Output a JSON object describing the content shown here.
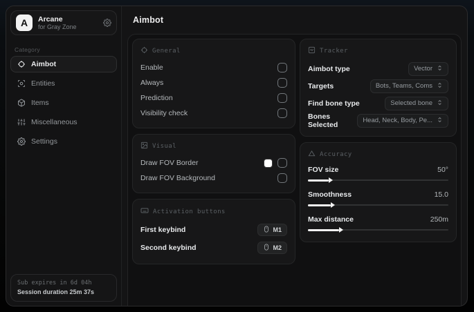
{
  "app": {
    "name": "Arcane",
    "subtitle": "for Gray Zone",
    "logo_letter": "A"
  },
  "sidebar": {
    "category_label": "Category",
    "items": [
      {
        "label": "Aimbot",
        "icon": "crosshair-icon",
        "active": true
      },
      {
        "label": "Entities",
        "icon": "entities-icon",
        "active": false
      },
      {
        "label": "Items",
        "icon": "items-icon",
        "active": false
      },
      {
        "label": "Miscellaneous",
        "icon": "sliders-icon",
        "active": false
      },
      {
        "label": "Settings",
        "icon": "gear-icon",
        "active": false
      }
    ],
    "footer": {
      "expiry": "Sub expires in 6d 04h",
      "session": "Session duration 25m 37s"
    }
  },
  "main": {
    "title": "Aimbot",
    "general": {
      "title": "General",
      "rows": [
        {
          "label": "Enable",
          "checked": false
        },
        {
          "label": "Always",
          "checked": false
        },
        {
          "label": "Prediction",
          "checked": false
        },
        {
          "label": "Visibility check",
          "checked": false
        }
      ]
    },
    "visual": {
      "title": "Visual",
      "rows": [
        {
          "label": "Draw FOV Border",
          "color": "#ffffff",
          "checked": false
        },
        {
          "label": "Draw FOV Background",
          "checked": false
        }
      ]
    },
    "activation": {
      "title": "Activation buttons",
      "rows": [
        {
          "label": "First keybind",
          "key": "M1"
        },
        {
          "label": "Second keybind",
          "key": "M2"
        }
      ]
    },
    "tracker": {
      "title": "Tracker",
      "rows": [
        {
          "label": "Aimbot type",
          "value": "Vector"
        },
        {
          "label": "Targets",
          "value": "Bots, Teams, Coms"
        },
        {
          "label": "Find bone type",
          "value": "Selected bone"
        },
        {
          "label": "Bones Selected",
          "value": "Head, Neck, Body, Pe..."
        }
      ]
    },
    "accuracy": {
      "title": "Accuracy",
      "rows": [
        {
          "label": "FOV size",
          "value": "50°",
          "fill": "15%"
        },
        {
          "label": "Smoothness",
          "value": "15.0",
          "fill": "16%"
        },
        {
          "label": "Max distance",
          "value": "250m",
          "fill": "22%"
        }
      ]
    }
  },
  "colors": {
    "accent_swatch": "#ffffff",
    "card_bg": "#171718",
    "window_bg": "#141415",
    "slider_fill": "#f4f4f4"
  }
}
